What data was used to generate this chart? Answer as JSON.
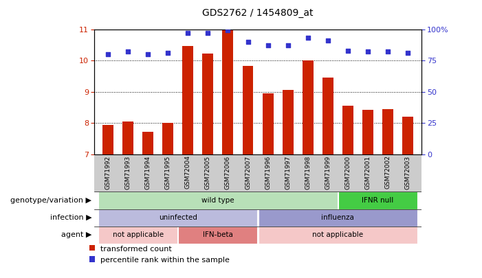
{
  "title": "GDS2762 / 1454809_at",
  "samples": [
    "GSM71992",
    "GSM71993",
    "GSM71994",
    "GSM71995",
    "GSM72004",
    "GSM72005",
    "GSM72006",
    "GSM72007",
    "GSM71996",
    "GSM71997",
    "GSM71998",
    "GSM71999",
    "GSM72000",
    "GSM72001",
    "GSM72002",
    "GSM72003"
  ],
  "bar_values": [
    7.93,
    8.05,
    7.72,
    8.0,
    10.47,
    10.22,
    10.97,
    9.82,
    8.95,
    9.05,
    10.0,
    9.45,
    8.55,
    8.42,
    8.45,
    8.2
  ],
  "dot_values": [
    80,
    82,
    80,
    81,
    97,
    97,
    99,
    90,
    87,
    87,
    93,
    91,
    83,
    82,
    82,
    81
  ],
  "ylim": [
    7,
    11
  ],
  "yticks": [
    7,
    8,
    9,
    10,
    11
  ],
  "y2lim": [
    0,
    100
  ],
  "y2ticks": [
    0,
    25,
    50,
    75,
    100
  ],
  "bar_color": "#cc2200",
  "dot_color": "#3333cc",
  "bar_width": 0.55,
  "grid_yticks": [
    8,
    9,
    10
  ],
  "annotations": {
    "genotype_variation": {
      "label": "genotype/variation",
      "segments": [
        {
          "text": "wild type",
          "start": 0,
          "end": 11,
          "color": "#b8e0b8"
        },
        {
          "text": "IFNR null",
          "start": 12,
          "end": 15,
          "color": "#44cc44"
        }
      ]
    },
    "infection": {
      "label": "infection",
      "segments": [
        {
          "text": "uninfected",
          "start": 0,
          "end": 7,
          "color": "#bbbbdd"
        },
        {
          "text": "influenza",
          "start": 8,
          "end": 15,
          "color": "#9999cc"
        }
      ]
    },
    "agent": {
      "label": "agent",
      "segments": [
        {
          "text": "not applicable",
          "start": 0,
          "end": 3,
          "color": "#f5c8c8"
        },
        {
          "text": "IFN-beta",
          "start": 4,
          "end": 7,
          "color": "#e08080"
        },
        {
          "text": "not applicable",
          "start": 8,
          "end": 15,
          "color": "#f5c8c8"
        }
      ]
    }
  },
  "legend": [
    {
      "color": "#cc2200",
      "label": "transformed count"
    },
    {
      "color": "#3333cc",
      "label": "percentile rank within the sample"
    }
  ],
  "xlabels_bg": "#cccccc",
  "fig_bg": "#ffffff"
}
